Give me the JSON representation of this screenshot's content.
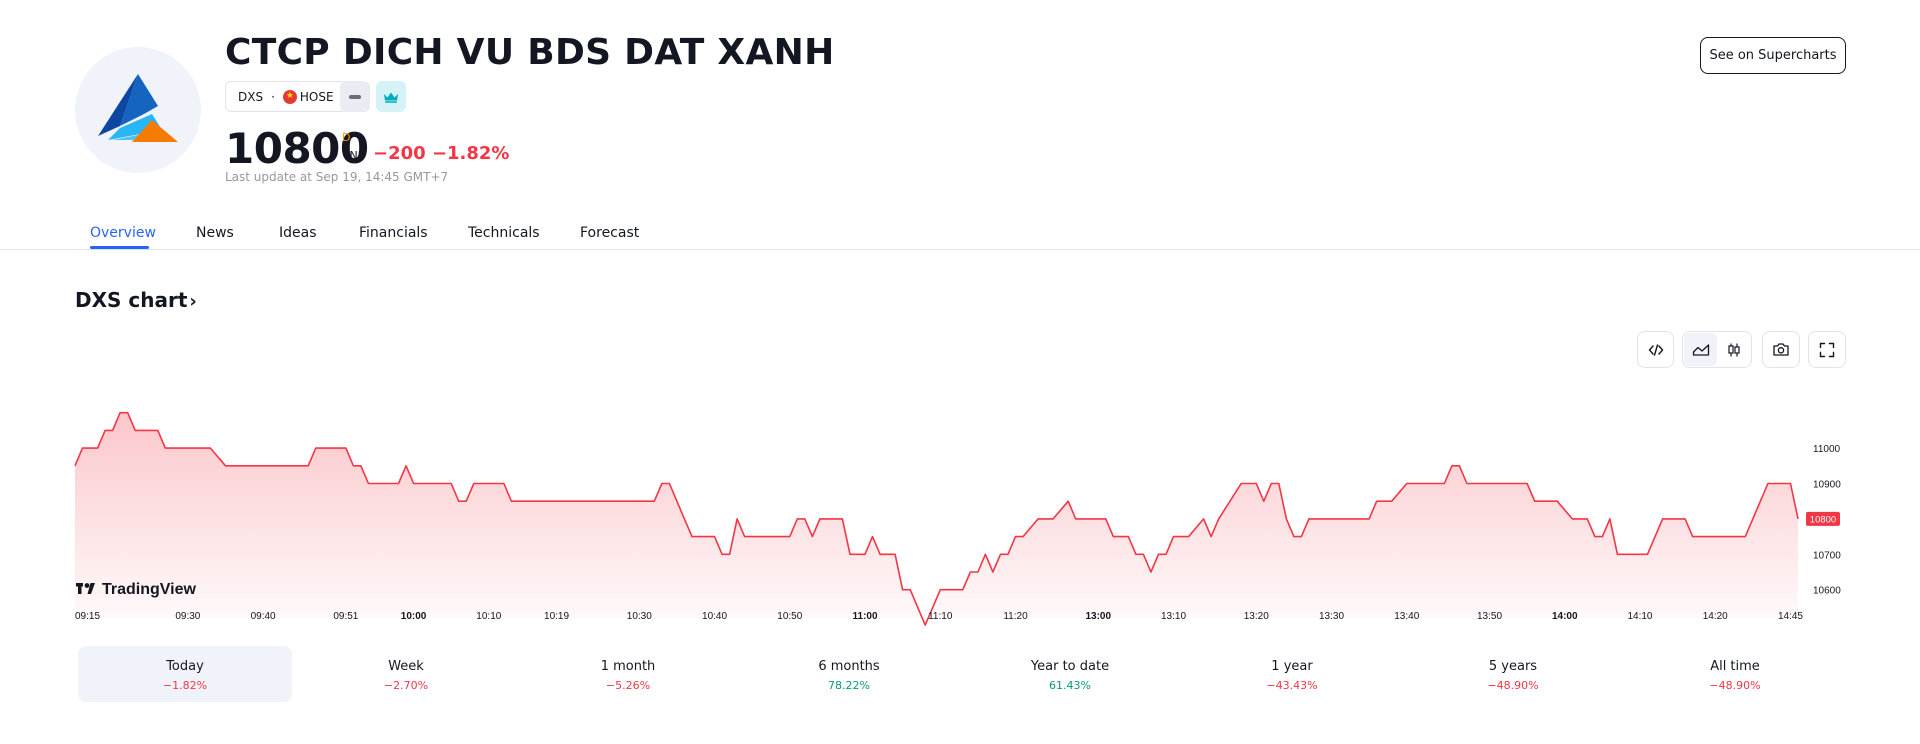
{
  "header": {
    "company_name": "CTCP DICH VU BDS DAT XANH",
    "ticker": "DXS",
    "separator": "·",
    "exchange": "HOSE",
    "exchange_flag": "vietnam-flag-icon",
    "price": "10800",
    "price_flag": "D",
    "currency": "VND",
    "change": "−200",
    "change_percent": "−1.82%",
    "last_update": "Last update at Sep 19, 14:45 GMT+7",
    "supercharts_button": "See on Supercharts",
    "logo": "dxs-triangle-logo"
  },
  "tabs": [
    {
      "label": "Overview",
      "active": true
    },
    {
      "label": "News"
    },
    {
      "label": "Ideas"
    },
    {
      "label": "Financials"
    },
    {
      "label": "Technicals"
    },
    {
      "label": "Forecast"
    }
  ],
  "chart_section": {
    "title": "DXS chart",
    "chevron": "›",
    "watermark": "TradingView",
    "tools": [
      "embed-code-icon",
      "area-chart-icon",
      "candles-icon",
      "camera-icon",
      "fullscreen-icon"
    ]
  },
  "colors": {
    "negative": "#f23645",
    "positive": "#089981",
    "accent": "#2962ff",
    "line": "#f23645"
  },
  "chart_data": {
    "type": "area",
    "title": "",
    "xlabel": "",
    "ylabel": "",
    "grid": false,
    "y_ticks": [
      11000,
      10900,
      10700,
      10600
    ],
    "last_value_label": "10800",
    "ylim": [
      10520,
      11150
    ],
    "x_ticks": [
      {
        "label": "09:15",
        "t": 0,
        "bold": false
      },
      {
        "label": "09:30",
        "t": 15,
        "bold": false
      },
      {
        "label": "09:40",
        "t": 25,
        "bold": false
      },
      {
        "label": "09:51",
        "t": 36,
        "bold": false
      },
      {
        "label": "10:00",
        "t": 45,
        "bold": true
      },
      {
        "label": "10:10",
        "t": 55,
        "bold": false
      },
      {
        "label": "10:19",
        "t": 64,
        "bold": false
      },
      {
        "label": "10:30",
        "t": 75,
        "bold": false
      },
      {
        "label": "10:40",
        "t": 85,
        "bold": false
      },
      {
        "label": "10:50",
        "t": 95,
        "bold": false
      },
      {
        "label": "11:00",
        "t": 105,
        "bold": true
      },
      {
        "label": "11:10",
        "t": 115,
        "bold": false
      },
      {
        "label": "11:20",
        "t": 125,
        "bold": false
      },
      {
        "label": "13:00",
        "t": 136,
        "bold": true
      },
      {
        "label": "13:10",
        "t": 146,
        "bold": false
      },
      {
        "label": "13:20",
        "t": 157,
        "bold": false
      },
      {
        "label": "13:30",
        "t": 167,
        "bold": false
      },
      {
        "label": "13:40",
        "t": 177,
        "bold": false
      },
      {
        "label": "13:50",
        "t": 188,
        "bold": false
      },
      {
        "label": "14:00",
        "t": 198,
        "bold": true
      },
      {
        "label": "14:10",
        "t": 208,
        "bold": false
      },
      {
        "label": "14:20",
        "t": 218,
        "bold": false
      },
      {
        "label": "14:45",
        "t": 228,
        "bold": false
      }
    ],
    "series": [
      {
        "points": [
          [
            0,
            10950
          ],
          [
            1,
            11000
          ],
          [
            3,
            11000
          ],
          [
            4,
            11050
          ],
          [
            5,
            11050
          ],
          [
            6,
            11100
          ],
          [
            7,
            11100
          ],
          [
            8,
            11050
          ],
          [
            11,
            11050
          ],
          [
            12,
            11000
          ],
          [
            18,
            11000
          ],
          [
            20,
            10950
          ],
          [
            31,
            10950
          ],
          [
            32,
            11000
          ],
          [
            36,
            11000
          ],
          [
            37,
            10950
          ],
          [
            38,
            10950
          ],
          [
            39,
            10900
          ],
          [
            43,
            10900
          ],
          [
            44,
            10950
          ],
          [
            45,
            10900
          ],
          [
            50,
            10900
          ],
          [
            51,
            10850
          ],
          [
            52,
            10850
          ],
          [
            53,
            10900
          ],
          [
            57,
            10900
          ],
          [
            58,
            10850
          ],
          [
            77,
            10850
          ],
          [
            78,
            10900
          ],
          [
            79,
            10900
          ],
          [
            81,
            10800
          ],
          [
            82,
            10750
          ],
          [
            85,
            10750
          ],
          [
            86,
            10700
          ],
          [
            87,
            10700
          ],
          [
            88,
            10800
          ],
          [
            89,
            10750
          ],
          [
            95,
            10750
          ],
          [
            96,
            10800
          ],
          [
            97,
            10800
          ],
          [
            98,
            10750
          ],
          [
            99,
            10800
          ],
          [
            102,
            10800
          ],
          [
            103,
            10700
          ],
          [
            105,
            10700
          ],
          [
            106,
            10750
          ],
          [
            107,
            10700
          ],
          [
            109,
            10700
          ],
          [
            110,
            10600
          ],
          [
            111,
            10600
          ],
          [
            113,
            10500
          ],
          [
            115,
            10600
          ],
          [
            118,
            10600
          ],
          [
            119,
            10650
          ],
          [
            120,
            10650
          ],
          [
            121,
            10700
          ],
          [
            122,
            10650
          ],
          [
            123,
            10700
          ],
          [
            124,
            10700
          ],
          [
            125,
            10750
          ],
          [
            126,
            10750
          ],
          [
            128,
            10800
          ],
          [
            130,
            10800
          ],
          [
            132,
            10850
          ],
          [
            133,
            10800
          ],
          [
            137,
            10800
          ],
          [
            138,
            10750
          ],
          [
            140,
            10750
          ],
          [
            141,
            10700
          ],
          [
            142,
            10700
          ],
          [
            143,
            10650
          ],
          [
            144,
            10700
          ],
          [
            145,
            10700
          ],
          [
            146,
            10750
          ],
          [
            148,
            10750
          ],
          [
            150,
            10800
          ],
          [
            151,
            10750
          ],
          [
            152,
            10800
          ],
          [
            155,
            10900
          ],
          [
            157,
            10900
          ],
          [
            158,
            10850
          ],
          [
            159,
            10900
          ],
          [
            160,
            10900
          ],
          [
            161,
            10800
          ],
          [
            162,
            10750
          ],
          [
            163,
            10750
          ],
          [
            164,
            10800
          ],
          [
            172,
            10800
          ],
          [
            173,
            10850
          ],
          [
            175,
            10850
          ],
          [
            177,
            10900
          ],
          [
            182,
            10900
          ],
          [
            183,
            10950
          ],
          [
            184,
            10950
          ],
          [
            185,
            10900
          ],
          [
            193,
            10900
          ],
          [
            194,
            10850
          ],
          [
            197,
            10850
          ],
          [
            199,
            10800
          ],
          [
            201,
            10800
          ],
          [
            202,
            10750
          ],
          [
            203,
            10750
          ],
          [
            204,
            10800
          ],
          [
            205,
            10700
          ],
          [
            209,
            10700
          ],
          [
            211,
            10800
          ],
          [
            214,
            10800
          ],
          [
            215,
            10750
          ],
          [
            222,
            10750
          ],
          [
            224,
            10850
          ],
          [
            225,
            10900
          ],
          [
            228,
            10900
          ],
          [
            229,
            10800
          ]
        ]
      }
    ]
  },
  "ranges": [
    {
      "label": "Today",
      "value": "−1.82%",
      "sign": "neg",
      "active": true
    },
    {
      "label": "Week",
      "value": "−2.70%",
      "sign": "neg"
    },
    {
      "label": "1 month",
      "value": "−5.26%",
      "sign": "neg"
    },
    {
      "label": "6 months",
      "value": "78.22%",
      "sign": "pos"
    },
    {
      "label": "Year to date",
      "value": "61.43%",
      "sign": "pos"
    },
    {
      "label": "1 year",
      "value": "−43.43%",
      "sign": "neg"
    },
    {
      "label": "5 years",
      "value": "−48.90%",
      "sign": "neg"
    },
    {
      "label": "All time",
      "value": "−48.90%",
      "sign": "neg"
    }
  ]
}
